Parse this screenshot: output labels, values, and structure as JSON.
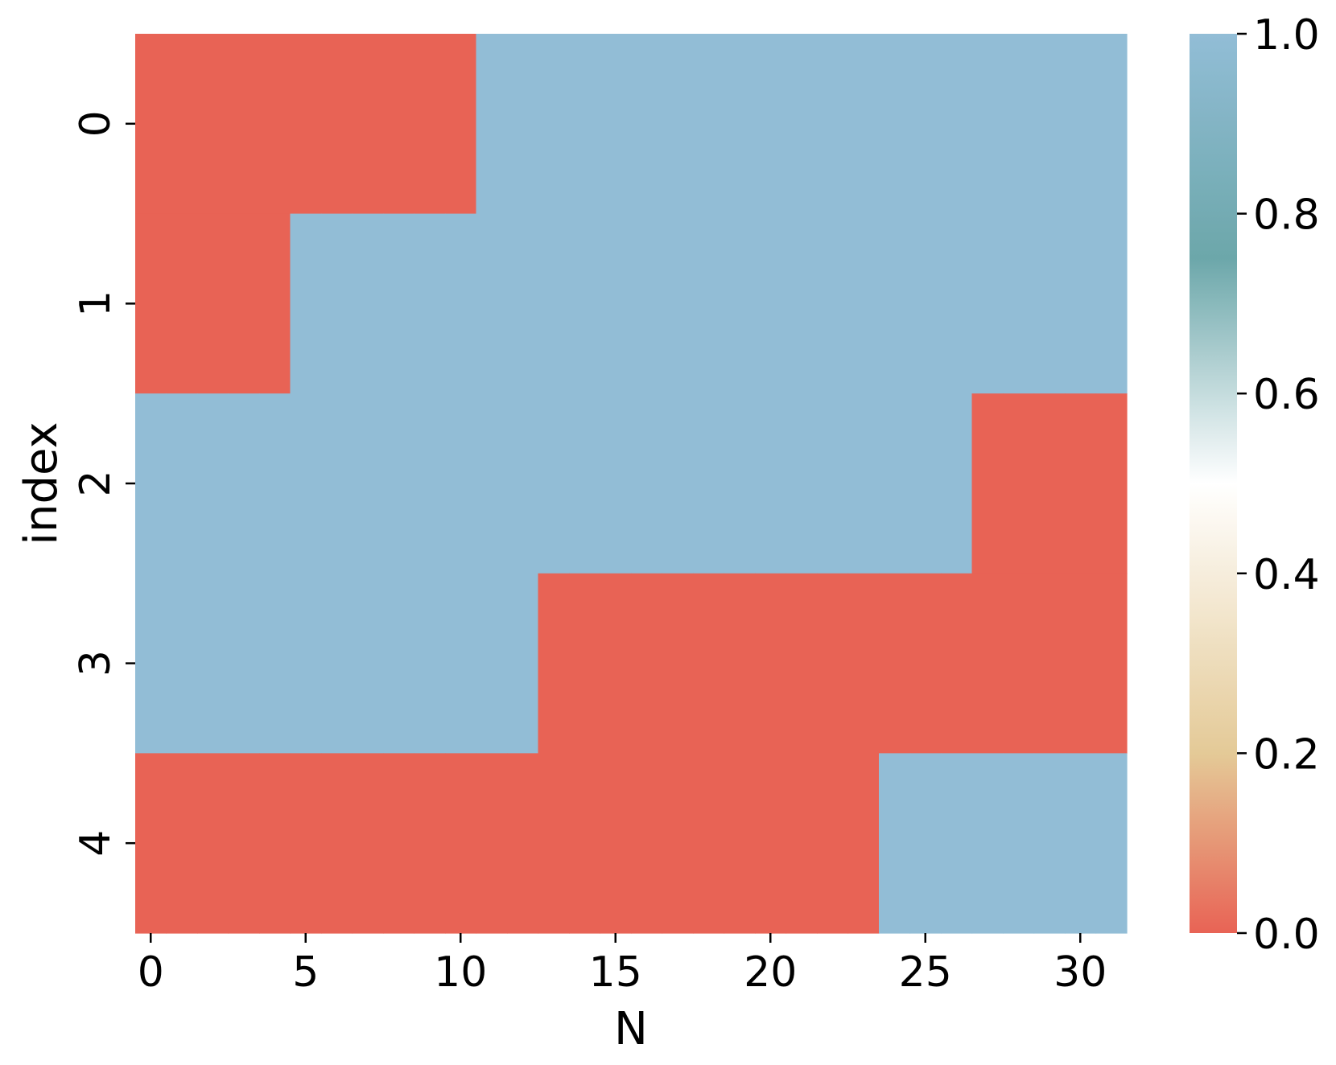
{
  "chart_data": {
    "type": "heatmap",
    "title": "",
    "xlabel": "N",
    "ylabel": "index",
    "x_ticks": [
      "0",
      "5",
      "10",
      "15",
      "20",
      "25",
      "30"
    ],
    "y_ticks": [
      "0",
      "1",
      "2",
      "3",
      "4"
    ],
    "colorbar_ticks": [
      "0.0",
      "0.2",
      "0.4",
      "0.6",
      "0.8",
      "1.0"
    ],
    "n_columns": 32,
    "n_rows": 5,
    "vmin": 0.0,
    "vmax": 1.0,
    "values": [
      [
        0,
        0,
        0,
        0,
        0,
        0,
        0,
        0,
        0,
        0,
        0,
        1,
        1,
        1,
        1,
        1,
        1,
        1,
        1,
        1,
        1,
        1,
        1,
        1,
        1,
        1,
        1,
        1,
        1,
        1,
        1,
        1
      ],
      [
        0,
        0,
        0,
        0,
        0,
        1,
        1,
        1,
        1,
        1,
        1,
        1,
        1,
        1,
        1,
        1,
        1,
        1,
        1,
        1,
        1,
        1,
        1,
        1,
        1,
        1,
        1,
        1,
        1,
        1,
        1,
        1
      ],
      [
        1,
        1,
        1,
        1,
        1,
        1,
        1,
        1,
        1,
        1,
        1,
        1,
        1,
        1,
        1,
        1,
        1,
        1,
        1,
        1,
        1,
        1,
        1,
        1,
        1,
        1,
        1,
        0,
        0,
        0,
        0,
        0
      ],
      [
        1,
        1,
        1,
        1,
        1,
        1,
        1,
        1,
        1,
        1,
        1,
        1,
        1,
        0,
        0,
        0,
        0,
        0,
        0,
        0,
        0,
        0,
        0,
        0,
        0,
        0,
        0,
        0,
        0,
        0,
        0,
        0
      ],
      [
        0,
        0,
        0,
        0,
        0,
        0,
        0,
        0,
        0,
        0,
        0,
        0,
        0,
        0,
        0,
        0,
        0,
        0,
        0,
        0,
        0,
        0,
        0,
        0,
        1,
        1,
        1,
        1,
        1,
        1,
        1,
        1
      ]
    ],
    "colormap": [
      {
        "v": 0.0,
        "color": "#e86355"
      },
      {
        "v": 0.2,
        "color": "#e4ca97"
      },
      {
        "v": 0.5,
        "color": "#ffffff"
      },
      {
        "v": 0.75,
        "color": "#6ca7aa"
      },
      {
        "v": 1.0,
        "color": "#92bdd6"
      }
    ],
    "grid": false,
    "legend": "colorbar-right"
  }
}
